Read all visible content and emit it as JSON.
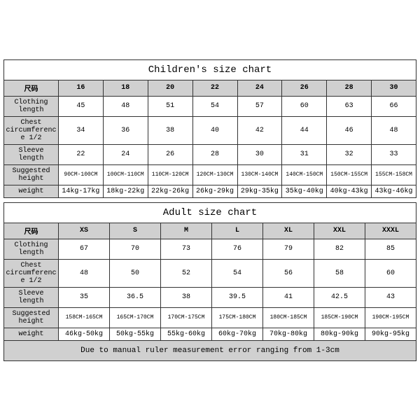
{
  "children": {
    "title": "Children's size chart",
    "size_label": "尺码",
    "sizes": [
      "16",
      "18",
      "20",
      "22",
      "24",
      "26",
      "28",
      "30"
    ],
    "rows": [
      {
        "label": "Clothing length",
        "values": [
          "45",
          "48",
          "51",
          "54",
          "57",
          "60",
          "63",
          "66"
        ]
      },
      {
        "label": "Chest circumference 1/2",
        "values": [
          "34",
          "36",
          "38",
          "40",
          "42",
          "44",
          "46",
          "48"
        ]
      },
      {
        "label": "Sleeve length",
        "values": [
          "22",
          "24",
          "26",
          "28",
          "30",
          "31",
          "32",
          "33"
        ]
      },
      {
        "label": "Suggested height",
        "values": [
          "90CM-100CM",
          "100CM-110CM",
          "110CM-120CM",
          "120CM-130CM",
          "130CM-140CM",
          "140CM-150CM",
          "150CM-155CM",
          "155CM-158CM"
        ],
        "small": true
      },
      {
        "label": "weight",
        "values": [
          "14kg-17kg",
          "18kg-22kg",
          "22kg-26kg",
          "26kg-29kg",
          "29kg-35kg",
          "35kg-40kg",
          "40kg-43kg",
          "43kg-46kg"
        ]
      }
    ]
  },
  "adult": {
    "title": "Adult size chart",
    "size_label": "尺码",
    "sizes": [
      "XS",
      "S",
      "M",
      "L",
      "XL",
      "XXL",
      "XXXL"
    ],
    "rows": [
      {
        "label": "Clothing length",
        "values": [
          "67",
          "70",
          "73",
          "76",
          "79",
          "82",
          "85"
        ]
      },
      {
        "label": "Chest circumference 1/2",
        "values": [
          "48",
          "50",
          "52",
          "54",
          "56",
          "58",
          "60"
        ]
      },
      {
        "label": "Sleeve length",
        "values": [
          "35",
          "36.5",
          "38",
          "39.5",
          "41",
          "42.5",
          "43"
        ]
      },
      {
        "label": "Suggested height",
        "values": [
          "158CM-165CM",
          "165CM-170CM",
          "170CM-175CM",
          "175CM-180CM",
          "180CM-185CM",
          "185CM-190CM",
          "190CM-195CM"
        ],
        "small": true
      },
      {
        "label": "weight",
        "values": [
          "46kg-50kg",
          "50kg-55kg",
          "55kg-60kg",
          "60kg-70kg",
          "70kg-80kg",
          "80kg-90kg",
          "90kg-95kg"
        ]
      }
    ]
  },
  "note": "Due to manual ruler measurement error ranging from 1-3cm",
  "style": {
    "border_color": "#333333",
    "header_bg": "#d0d0d0",
    "background": "#ffffff",
    "font_family": "Courier New",
    "title_fontsize": 14,
    "cell_fontsize": 10,
    "small_fontsize": 8
  }
}
